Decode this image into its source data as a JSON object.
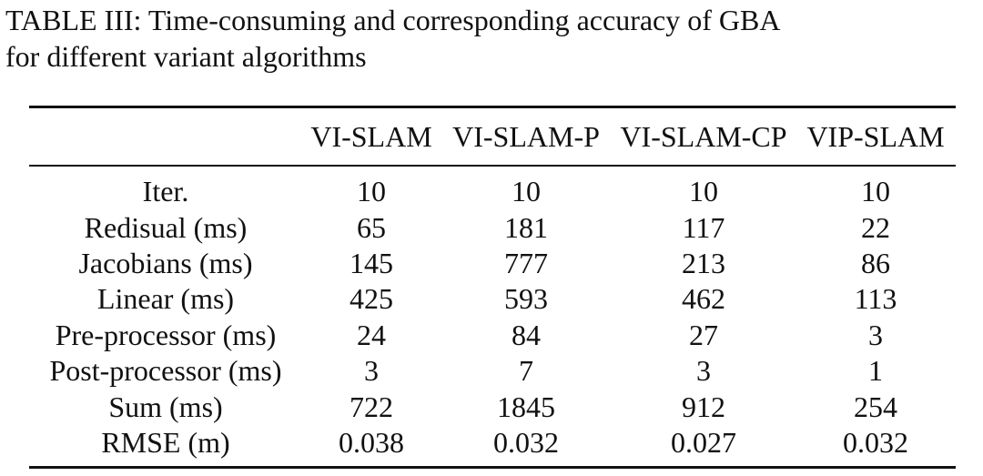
{
  "caption": {
    "line1": "TABLE III: Time-consuming and corresponding accuracy of GBA",
    "line2": "for different variant algorithms"
  },
  "table": {
    "columns": [
      "",
      "VI-SLAM",
      "VI-SLAM-P",
      "VI-SLAM-CP",
      "VIP-SLAM"
    ],
    "rows": [
      {
        "label": "Iter.",
        "values": [
          "10",
          "10",
          "10",
          "10"
        ]
      },
      {
        "label": "Redisual (ms)",
        "values": [
          "65",
          "181",
          "117",
          "22"
        ]
      },
      {
        "label": "Jacobians (ms)",
        "values": [
          "145",
          "777",
          "213",
          "86"
        ]
      },
      {
        "label": "Linear (ms)",
        "values": [
          "425",
          "593",
          "462",
          "113"
        ]
      },
      {
        "label": "Pre-processor (ms)",
        "values": [
          "24",
          "84",
          "27",
          "3"
        ]
      },
      {
        "label": "Post-processor (ms)",
        "values": [
          "3",
          "7",
          "3",
          "1"
        ]
      },
      {
        "label": "Sum (ms)",
        "values": [
          "722",
          "1845",
          "912",
          "254"
        ]
      },
      {
        "label": "RMSE (m)",
        "values": [
          "0.038",
          "0.032",
          "0.027",
          "0.032"
        ]
      }
    ]
  }
}
